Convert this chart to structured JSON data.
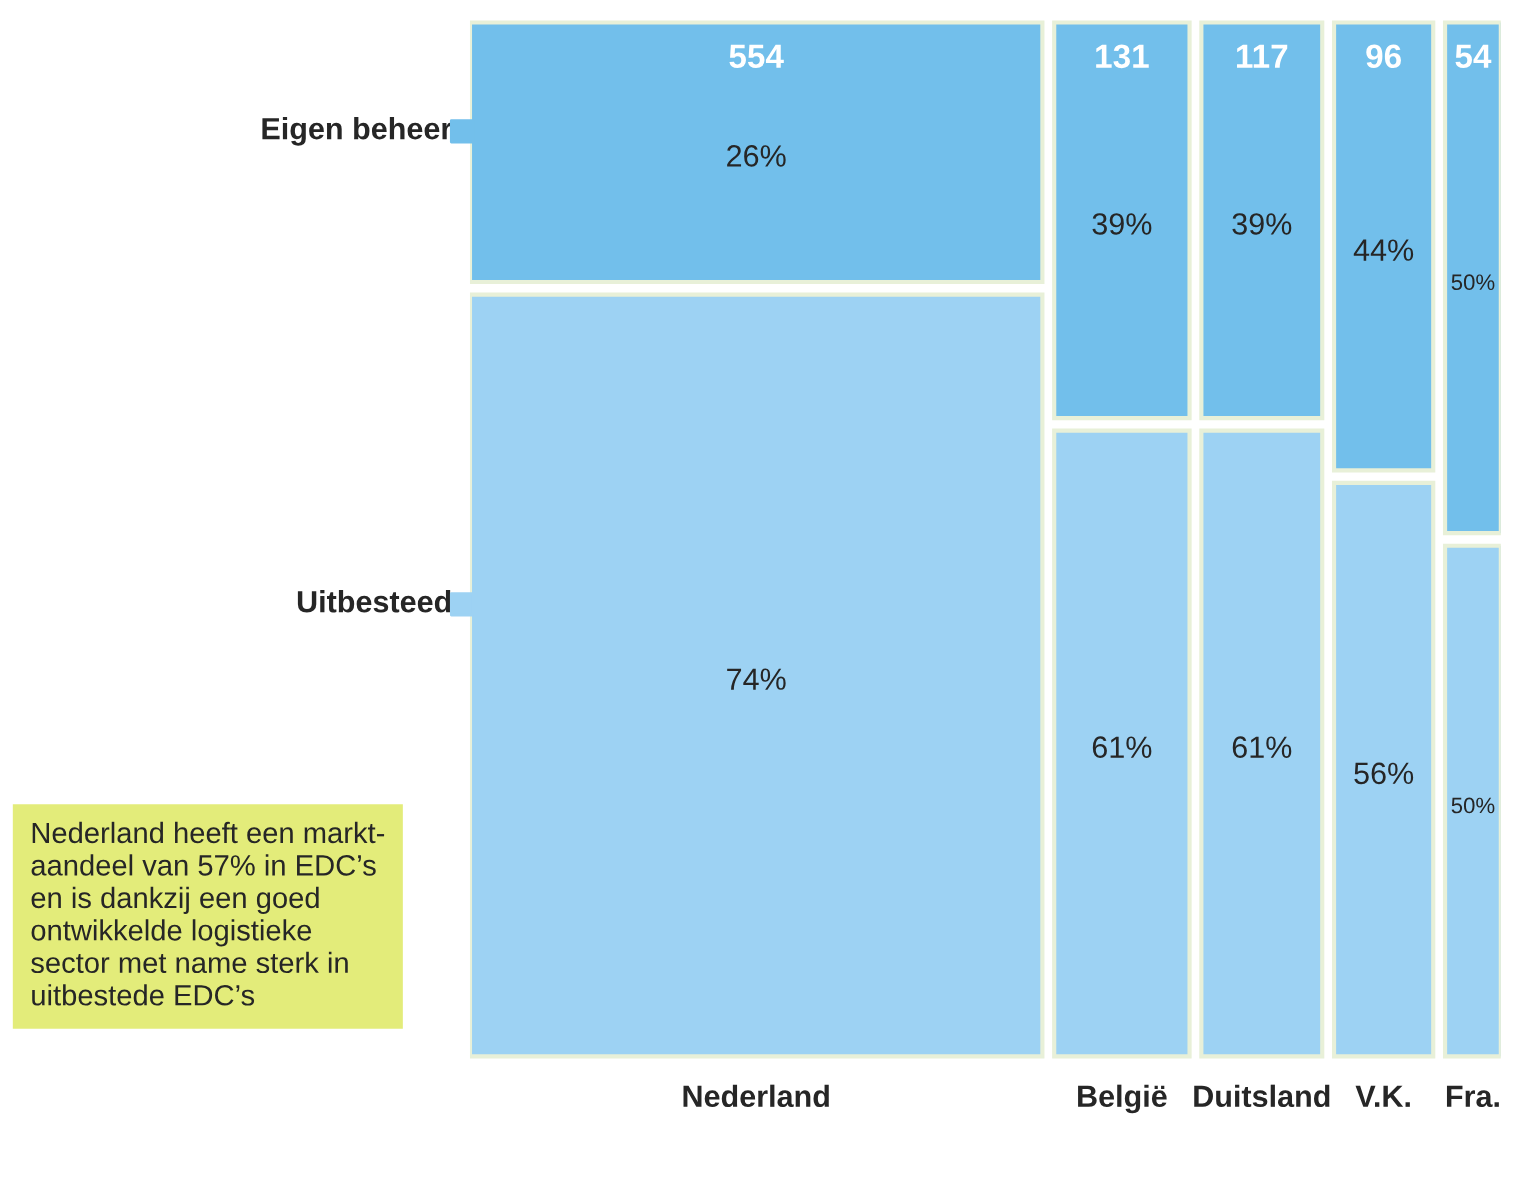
{
  "chart_data": {
    "type": "other",
    "categories": [
      "Nederland",
      "België",
      "Duitsland",
      "V.K.",
      "Fra."
    ],
    "values": [
      554,
      131,
      117,
      96,
      54
    ],
    "value_labels": [
      "554",
      "131",
      "117",
      "96",
      "54"
    ],
    "series": [
      {
        "name": "Eigen beheer",
        "color": "#72bfeb",
        "values": [
          26,
          39,
          39,
          44,
          50
        ],
        "value_labels": [
          "26%",
          "39%",
          "39%",
          "44%",
          "50%"
        ]
      },
      {
        "name": "Uitbesteed",
        "color": "#9dd2f3",
        "values": [
          74,
          61,
          61,
          56,
          50
        ],
        "value_labels": [
          "74%",
          "61%",
          "61%",
          "56%",
          "50%"
        ]
      }
    ],
    "annotations": [
      "Nederland heeft een markt-\naandeel van 57% in EDC’s\nen is dankzij een goed\nontwikkelde logistieke\nsector met name sterk in\nuitbestede EDC’s"
    ]
  }
}
